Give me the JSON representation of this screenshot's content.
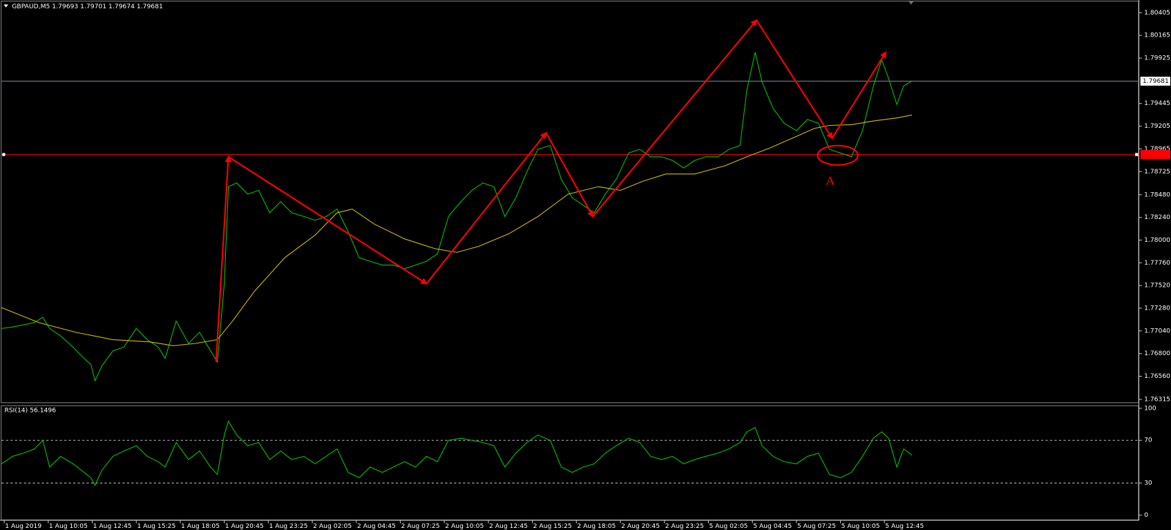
{
  "chart_data": [
    {
      "type": "line",
      "title": "GBPAUD,M5  1.79693 1.79701 1.79674 1.79681",
      "xlim": [
        0,
        827
      ],
      "xticks": [
        {
          "value": 2,
          "label": "1 Aug 2019"
        },
        {
          "value": 34,
          "label": "1 Aug 10:05"
        },
        {
          "value": 66,
          "label": "1 Aug 12:45"
        },
        {
          "value": 98,
          "label": "1 Aug 15:25"
        },
        {
          "value": 130,
          "label": "1 Aug 18:05"
        },
        {
          "value": 162,
          "label": "1 Aug 20:45"
        },
        {
          "value": 194,
          "label": "1 Aug 23:25"
        },
        {
          "value": 226,
          "label": "2 Aug 02:05"
        },
        {
          "value": 258,
          "label": "2 Aug 04:45"
        },
        {
          "value": 290,
          "label": "2 Aug 07:25"
        },
        {
          "value": 322,
          "label": "2 Aug 10:05"
        },
        {
          "value": 354,
          "label": "2 Aug 12:45"
        },
        {
          "value": 386,
          "label": "2 Aug 15:25"
        },
        {
          "value": 418,
          "label": "2 Aug 18:05"
        },
        {
          "value": 450,
          "label": "2 Aug 20:45"
        },
        {
          "value": 482,
          "label": "2 Aug 23:25"
        },
        {
          "value": 514,
          "label": "5 Aug 02:05"
        },
        {
          "value": 546,
          "label": "5 Aug 04:45"
        },
        {
          "value": 578,
          "label": "5 Aug 07:25"
        },
        {
          "value": 610,
          "label": "5 Aug 10:05"
        },
        {
          "value": 642,
          "label": "5 Aug 12:45"
        }
      ],
      "ylim": [
        1.76276,
        1.805
      ],
      "yticks": [
        1.80405,
        1.80165,
        1.79925,
        1.79445,
        1.79205,
        1.78965,
        1.78725,
        {
          "value": 1.7848,
          "label": "1.78480"
        },
        {
          "value": 1.7824,
          "label": "1.78240"
        },
        {
          "value": 1.78,
          "label": "1.78000"
        },
        {
          "value": 1.7776,
          "label": "1.77760"
        },
        {
          "value": 1.7752,
          "label": "1.77520"
        },
        {
          "value": 1.7728,
          "label": "1.77280"
        },
        {
          "value": 1.7704,
          "label": "1.77040"
        },
        {
          "value": 1.768,
          "label": "1.76800"
        },
        {
          "value": 1.7656,
          "label": "1.76560"
        },
        1.76315
      ],
      "current_price": 1.79681,
      "hline": {
        "value": 1.78905,
        "color": "#ff0000"
      },
      "series": [
        {
          "color": "#00c800",
          "x": [
            0,
            8,
            16,
            24,
            30,
            35,
            43,
            52,
            60,
            65,
            68,
            73,
            81,
            89,
            98,
            106,
            114,
            119,
            127,
            136,
            144,
            152,
            157,
            162,
            165,
            171,
            179,
            187,
            195,
            203,
            211,
            220,
            228,
            236,
            244,
            252,
            260,
            268,
            277,
            285,
            293,
            301,
            309,
            317,
            325,
            334,
            342,
            350,
            358,
            366,
            374,
            382,
            390,
            399,
            407,
            415,
            423,
            431,
            439,
            447,
            456,
            464,
            472,
            480,
            488,
            496,
            504,
            512,
            521,
            529,
            537,
            542,
            548,
            553,
            561,
            569,
            578,
            586,
            594,
            602,
            610,
            618,
            626,
            634,
            640,
            645,
            651,
            656,
            662
          ],
          "values": [
            1.77065,
            1.77081,
            1.77104,
            1.77128,
            1.77183,
            1.77065,
            1.76986,
            1.76868,
            1.76749,
            1.76686,
            1.76512,
            1.7667,
            1.76828,
            1.76868,
            1.77065,
            1.76947,
            1.76868,
            1.76749,
            1.77144,
            1.76907,
            1.77025,
            1.76828,
            1.7671,
            1.77539,
            1.78565,
            1.78605,
            1.78486,
            1.78526,
            1.78289,
            1.78407,
            1.78289,
            1.78249,
            1.7821,
            1.78249,
            1.78328,
            1.78091,
            1.77815,
            1.77776,
            1.77736,
            1.77736,
            1.77697,
            1.77736,
            1.77776,
            1.77855,
            1.78249,
            1.78407,
            1.78526,
            1.78605,
            1.78565,
            1.78249,
            1.78447,
            1.78723,
            1.7896,
            1.79,
            1.78644,
            1.78447,
            1.78368,
            1.78289,
            1.78486,
            1.78644,
            1.78921,
            1.7896,
            1.78881,
            1.78881,
            1.78842,
            1.78763,
            1.78842,
            1.78881,
            1.78881,
            1.7896,
            1.79,
            1.79592,
            1.79987,
            1.79671,
            1.79394,
            1.79236,
            1.79157,
            1.79276,
            1.79236,
            1.7896,
            1.78921,
            1.78881,
            1.79157,
            1.79631,
            1.79908,
            1.7971,
            1.79434,
            1.79631,
            1.79681
          ]
        },
        {
          "color": "#d8c000",
          "x": [
            0,
            27,
            54,
            81,
            108,
            125,
            141,
            157,
            168,
            184,
            206,
            228,
            244,
            255,
            271,
            293,
            315,
            331,
            347,
            369,
            390,
            412,
            434,
            450,
            466,
            483,
            504,
            526,
            542,
            559,
            575,
            591,
            602,
            618,
            634,
            651,
            662
          ],
          "values": [
            1.77286,
            1.77128,
            1.77025,
            1.76947,
            1.76923,
            1.76883,
            1.76907,
            1.76947,
            1.77144,
            1.7746,
            1.77815,
            1.78052,
            1.78289,
            1.78328,
            1.7817,
            1.78013,
            1.7791,
            1.7787,
            1.77934,
            1.78068,
            1.78249,
            1.78486,
            1.78565,
            1.78526,
            1.78621,
            1.78699,
            1.78699,
            1.78786,
            1.78881,
            1.78976,
            1.79078,
            1.79181,
            1.79213,
            1.79221,
            1.7926,
            1.79292,
            1.79323
          ]
        }
      ],
      "zigzag": {
        "color": "#ff0000",
        "x": [
          156,
          165,
          309,
          396,
          430,
          549,
          604,
          643
        ],
        "values": [
          1.7671,
          1.78881,
          1.77539,
          1.79134,
          1.78249,
          1.80326,
          1.79078,
          1.79987
        ]
      },
      "marker": {
        "x": 608,
        "y": 1.78897,
        "label": "A",
        "color": "#ff0000"
      }
    },
    {
      "type": "line",
      "title": "RSI(14) 56.1496",
      "xlim": [
        0,
        827
      ],
      "ylim": [
        0,
        100
      ],
      "yticks": [
        100,
        70,
        30,
        0
      ],
      "levels": [
        70,
        30
      ],
      "series": [
        {
          "color": "#00c800",
          "x": [
            0,
            8,
            16,
            24,
            30,
            35,
            43,
            52,
            60,
            65,
            68,
            73,
            81,
            89,
            98,
            106,
            114,
            119,
            127,
            136,
            144,
            152,
            157,
            162,
            165,
            171,
            179,
            187,
            195,
            203,
            211,
            220,
            228,
            236,
            244,
            252,
            260,
            268,
            277,
            285,
            293,
            301,
            309,
            317,
            325,
            334,
            342,
            350,
            358,
            366,
            374,
            382,
            390,
            399,
            407,
            415,
            423,
            431,
            439,
            447,
            456,
            464,
            472,
            480,
            488,
            496,
            504,
            512,
            521,
            529,
            537,
            542,
            548,
            553,
            561,
            569,
            578,
            586,
            594,
            602,
            610,
            618,
            626,
            634,
            640,
            645,
            651,
            656,
            662
          ],
          "values": [
            48,
            55,
            58,
            62,
            70,
            45,
            55,
            48,
            40,
            35,
            28,
            42,
            55,
            60,
            65,
            55,
            50,
            45,
            68,
            52,
            60,
            45,
            38,
            75,
            88,
            75,
            65,
            68,
            52,
            60,
            52,
            55,
            48,
            55,
            62,
            40,
            35,
            45,
            40,
            45,
            50,
            45,
            55,
            50,
            70,
            72,
            70,
            68,
            65,
            45,
            58,
            68,
            75,
            70,
            45,
            40,
            45,
            48,
            58,
            65,
            72,
            68,
            55,
            52,
            55,
            48,
            52,
            55,
            58,
            62,
            68,
            78,
            82,
            65,
            55,
            50,
            48,
            55,
            58,
            38,
            35,
            40,
            55,
            72,
            78,
            72,
            45,
            62,
            56.1496
          ]
        }
      ]
    }
  ]
}
